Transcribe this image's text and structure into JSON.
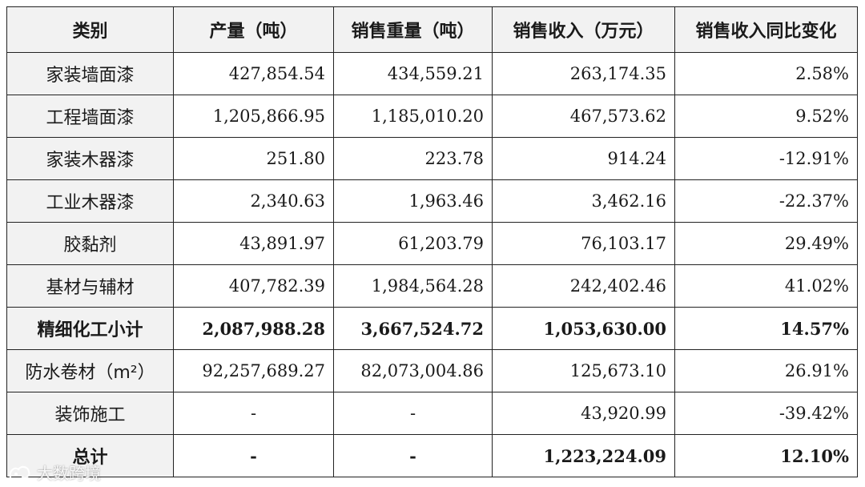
{
  "table": {
    "headers": [
      "类别",
      "产量（吨）",
      "销售重量（吨）",
      "销售收入（万元）",
      "销售收入同比变化"
    ],
    "rows": [
      {
        "category": "家装墙面漆",
        "production": "427,854.54",
        "sales_weight": "434,559.21",
        "revenue": "263,174.35",
        "yoy": "2.58%",
        "bold": false
      },
      {
        "category": "工程墙面漆",
        "production": "1,205,866.95",
        "sales_weight": "1,185,010.20",
        "revenue": "467,573.62",
        "yoy": "9.52%",
        "bold": false
      },
      {
        "category": "家装木器漆",
        "production": "251.80",
        "sales_weight": "223.78",
        "revenue": "914.24",
        "yoy": "-12.91%",
        "bold": false
      },
      {
        "category": "工业木器漆",
        "production": "2,340.63",
        "sales_weight": "1,963.46",
        "revenue": "3,462.16",
        "yoy": "-22.37%",
        "bold": false
      },
      {
        "category": "胶黏剂",
        "production": "43,891.97",
        "sales_weight": "61,203.79",
        "revenue": "76,103.17",
        "yoy": "29.49%",
        "bold": false
      },
      {
        "category": "基材与辅材",
        "production": "407,782.39",
        "sales_weight": "1,984,564.28",
        "revenue": "242,402.46",
        "yoy": "41.02%",
        "bold": false
      },
      {
        "category": "精细化工小计",
        "production": "2,087,988.28",
        "sales_weight": "3,667,524.72",
        "revenue": "1,053,630.00",
        "yoy": "14.57%",
        "bold": true
      },
      {
        "category": "防水卷材（m²）",
        "production": "92,257,689.27",
        "sales_weight": "82,073,004.86",
        "revenue": "125,673.10",
        "yoy": "26.91%",
        "bold": false
      },
      {
        "category": "装饰施工",
        "production": "-",
        "sales_weight": "-",
        "revenue": "43,920.99",
        "yoy": "-39.42%",
        "bold": false
      },
      {
        "category": "总计",
        "production": "-",
        "sales_weight": "-",
        "revenue": "1,223,224.09",
        "yoy": "12.10%",
        "bold": true
      }
    ]
  },
  "watermark": {
    "text": "大数跨境",
    "icon": "brand-logo-icon"
  }
}
